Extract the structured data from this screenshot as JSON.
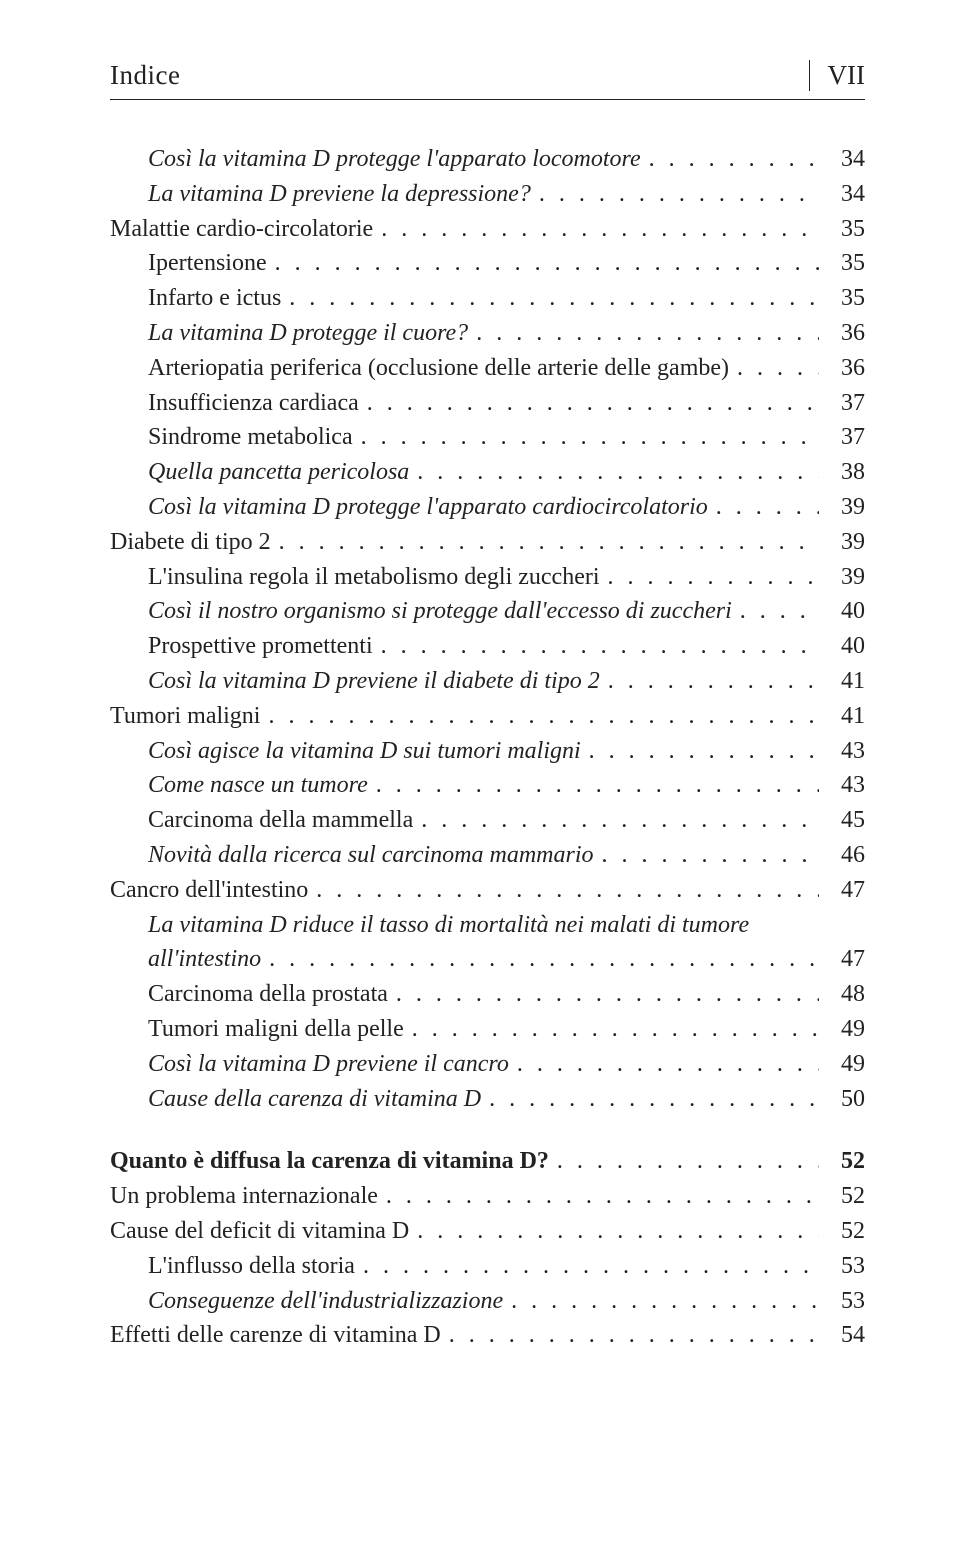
{
  "header": {
    "title": "Indice",
    "page_marker": "VII"
  },
  "toc": {
    "entries": [
      {
        "label": "Così la vitamina D protegge l'apparato locomotore",
        "page": "34",
        "indent": 1,
        "italic": true
      },
      {
        "label": "La vitamina D previene la depressione?",
        "page": "34",
        "indent": 1,
        "italic": true
      },
      {
        "label": "Malattie cardio-circolatorie",
        "page": "35",
        "indent": 0
      },
      {
        "label": "Ipertensione",
        "page": "35",
        "indent": 1
      },
      {
        "label": "Infarto e ictus",
        "page": "35",
        "indent": 1
      },
      {
        "label": "La vitamina D protegge il cuore?",
        "page": "36",
        "indent": 1,
        "italic": true
      },
      {
        "label": "Arteriopatia periferica (occlusione delle arterie delle gambe)",
        "page": "36",
        "indent": 1
      },
      {
        "label": "Insufficienza cardiaca",
        "page": "37",
        "indent": 1
      },
      {
        "label": "Sindrome metabolica",
        "page": "37",
        "indent": 1
      },
      {
        "label": "Quella pancetta pericolosa",
        "page": "38",
        "indent": 1,
        "italic": true
      },
      {
        "label": "Così la vitamina D protegge l'apparato cardiocircolatorio",
        "page": "39",
        "indent": 1,
        "italic": true
      },
      {
        "label": "Diabete di tipo 2",
        "page": "39",
        "indent": 0
      },
      {
        "label": "L'insulina regola il metabolismo degli zuccheri",
        "page": "39",
        "indent": 1
      },
      {
        "label": "Così il nostro organismo si  protegge dall'eccesso di zuccheri",
        "page": "40",
        "indent": 1,
        "italic": true
      },
      {
        "label": "Prospettive promettenti",
        "page": "40",
        "indent": 1
      },
      {
        "label": "Così la vitamina D previene il diabete di tipo 2",
        "page": "41",
        "indent": 1,
        "italic": true
      },
      {
        "label": "Tumori maligni",
        "page": "41",
        "indent": 0
      },
      {
        "label": "Così agisce la vitamina D sui tumori maligni",
        "page": "43",
        "indent": 1,
        "italic": true
      },
      {
        "label": "Come nasce un tumore",
        "page": "43",
        "indent": 1,
        "italic": true
      },
      {
        "label": "Carcinoma della mammella",
        "page": "45",
        "indent": 1
      },
      {
        "label": "Novità dalla ricerca sul carcinoma mammario",
        "page": "46",
        "indent": 1,
        "italic": true
      },
      {
        "label": "Cancro dell'intestino",
        "page": "47",
        "indent": 0
      },
      {
        "label": "La vitamina D riduce il tasso di mortalità nei malati di tumore",
        "page": "",
        "indent": 1,
        "italic": true,
        "no_leader": true
      },
      {
        "label": "all'intestino",
        "page": "47",
        "indent": 1,
        "italic": true
      },
      {
        "label": "Carcinoma della prostata",
        "page": "48",
        "indent": 1
      },
      {
        "label": "Tumori maligni della pelle",
        "page": "49",
        "indent": 1
      },
      {
        "label": "Così la vitamina D previene il cancro",
        "page": "49",
        "indent": 1,
        "italic": true
      },
      {
        "label": "Cause della carenza di vitamina D",
        "page": "50",
        "indent": 1,
        "italic": true
      },
      {
        "gap": true
      },
      {
        "label": "Quanto è diffusa la carenza di vitamina D?",
        "page": "52",
        "indent": 0,
        "bold": true
      },
      {
        "label": "Un problema internazionale",
        "page": "52",
        "indent": 0
      },
      {
        "label": "Cause del deficit di vitamina D",
        "page": "52",
        "indent": 0
      },
      {
        "label": "L'influsso della storia",
        "page": "53",
        "indent": 1
      },
      {
        "label": "Conseguenze dell'industrializzazione",
        "page": "53",
        "indent": 1,
        "italic": true
      },
      {
        "label": "Effetti delle carenze di vitamina D",
        "page": "54",
        "indent": 0
      }
    ]
  }
}
